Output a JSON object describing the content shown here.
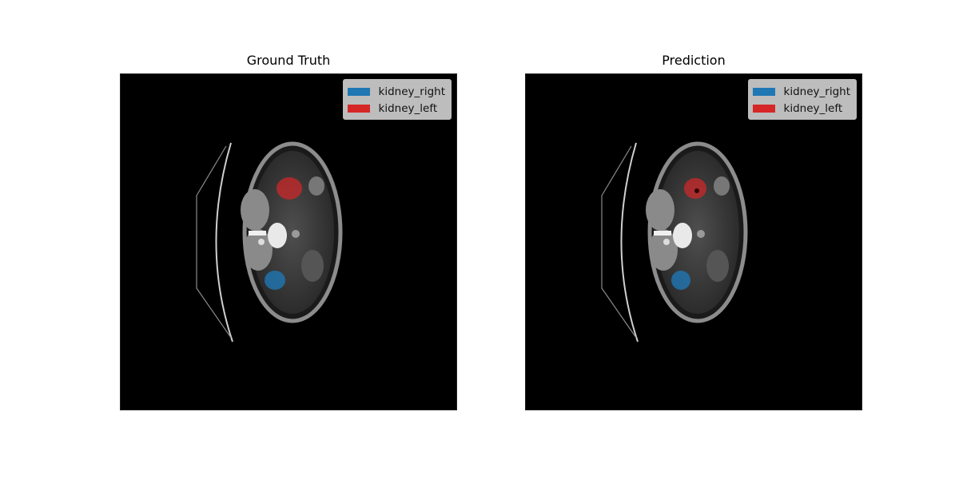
{
  "panels": [
    {
      "title": "Ground Truth"
    },
    {
      "title": "Prediction"
    }
  ],
  "legend": [
    {
      "label": "kidney_right",
      "color": "#1f77b4"
    },
    {
      "label": "kidney_left",
      "color": "#d62728"
    }
  ]
}
